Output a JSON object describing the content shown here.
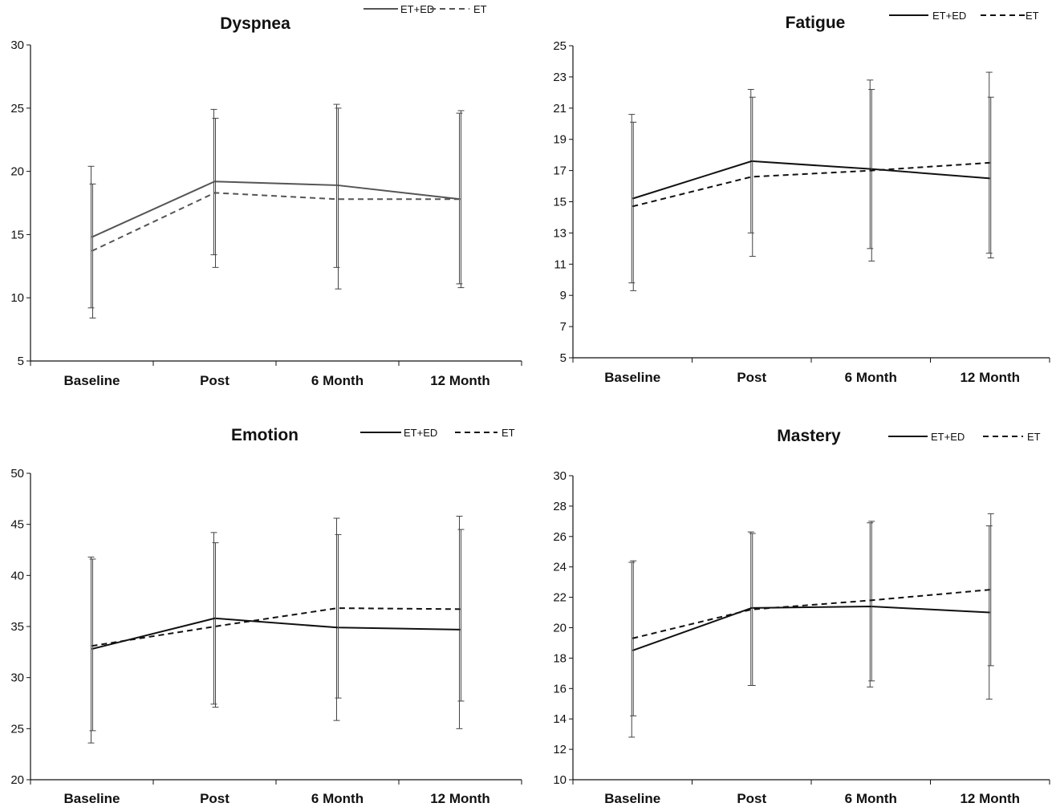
{
  "chart_data": [
    {
      "type": "line",
      "title": "Dyspnea",
      "categories": [
        "Baseline",
        "Post",
        "6 Month",
        "12 Month"
      ],
      "ylim": [
        5,
        30
      ],
      "yticks": [
        5,
        10,
        15,
        20,
        25,
        30
      ],
      "legend_position": "top-right",
      "series": [
        {
          "name": "ET+ED",
          "style": "solid",
          "color": "#555555",
          "values": [
            14.8,
            19.2,
            18.9,
            17.8
          ],
          "err_low": [
            9.2,
            13.4,
            12.4,
            11.1
          ],
          "err_high": [
            20.4,
            24.9,
            25.3,
            24.6
          ]
        },
        {
          "name": "ET",
          "style": "dashed",
          "color": "#555555",
          "values": [
            13.7,
            18.3,
            17.8,
            17.8
          ],
          "err_low": [
            8.4,
            12.4,
            10.7,
            10.8
          ],
          "err_high": [
            19.0,
            24.2,
            25.0,
            24.8
          ]
        }
      ]
    },
    {
      "type": "line",
      "title": "Fatigue",
      "categories": [
        "Baseline",
        "Post",
        "6 Month",
        "12 Month"
      ],
      "ylim": [
        5,
        25
      ],
      "yticks": [
        5,
        7,
        9,
        11,
        13,
        15,
        17,
        19,
        21,
        23,
        25
      ],
      "legend_position": "top-right",
      "series": [
        {
          "name": "ET+ED",
          "style": "solid",
          "color": "#111111",
          "values": [
            15.2,
            17.6,
            17.1,
            16.5
          ],
          "err_low": [
            9.8,
            13.0,
            12.0,
            11.7
          ],
          "err_high": [
            20.6,
            22.2,
            22.8,
            23.3
          ]
        },
        {
          "name": "ET",
          "style": "dashed",
          "color": "#111111",
          "values": [
            14.7,
            16.6,
            17.0,
            17.5
          ],
          "err_low": [
            9.3,
            11.5,
            11.2,
            11.4
          ],
          "err_high": [
            20.1,
            21.7,
            22.2,
            21.7
          ]
        }
      ]
    },
    {
      "type": "line",
      "title": "Emotion",
      "categories": [
        "Baseline",
        "Post",
        "6 Month",
        "12 Month"
      ],
      "ylim": [
        20,
        50
      ],
      "yticks": [
        20,
        25,
        30,
        35,
        40,
        45,
        50
      ],
      "legend_position": "top-right",
      "series": [
        {
          "name": "ET+ED",
          "style": "solid",
          "color": "#111111",
          "values": [
            32.8,
            35.8,
            34.9,
            34.7
          ],
          "err_low": [
            23.6,
            27.4,
            25.8,
            25.0
          ],
          "err_high": [
            41.8,
            44.2,
            45.6,
            45.8
          ]
        },
        {
          "name": "ET",
          "style": "dashed",
          "color": "#111111",
          "values": [
            33.1,
            35.0,
            36.8,
            36.7
          ],
          "err_low": [
            24.8,
            27.1,
            28.0,
            27.7
          ],
          "err_high": [
            41.6,
            43.2,
            44.0,
            44.5
          ]
        }
      ]
    },
    {
      "type": "line",
      "title": "Mastery",
      "categories": [
        "Baseline",
        "Post",
        "6 Month",
        "12 Month"
      ],
      "ylim": [
        10,
        30
      ],
      "yticks": [
        10,
        12,
        14,
        16,
        18,
        20,
        22,
        24,
        26,
        28,
        30
      ],
      "legend_position": "top-right",
      "series": [
        {
          "name": "ET+ED",
          "style": "solid",
          "color": "#111111",
          "values": [
            18.5,
            21.3,
            21.4,
            21.0
          ],
          "err_low": [
            12.8,
            16.2,
            16.1,
            15.3
          ],
          "err_high": [
            24.3,
            26.3,
            26.9,
            26.7
          ]
        },
        {
          "name": "ET",
          "style": "dashed",
          "color": "#111111",
          "values": [
            19.3,
            21.2,
            21.8,
            22.5
          ],
          "err_low": [
            14.2,
            16.2,
            16.5,
            17.5
          ],
          "err_high": [
            24.4,
            26.2,
            27.0,
            27.5
          ]
        }
      ]
    }
  ]
}
